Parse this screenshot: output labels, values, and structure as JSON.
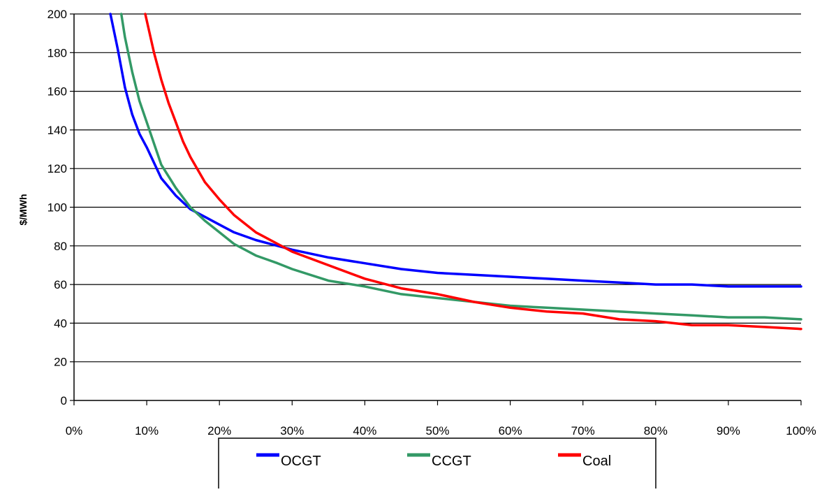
{
  "chart_data": {
    "type": "line",
    "title": "",
    "xlabel": "",
    "ylabel": "$/MWh",
    "x_tick_labels": [
      "0%",
      "10%",
      "20%",
      "30%",
      "40%",
      "50%",
      "60%",
      "70%",
      "80%",
      "90%",
      "100%"
    ],
    "y_tick_labels": [
      "0",
      "20",
      "40",
      "60",
      "80",
      "100",
      "120",
      "140",
      "160",
      "180",
      "200"
    ],
    "xlim": [
      0,
      100
    ],
    "ylim": [
      0,
      200
    ],
    "grid": "horizontal",
    "legend_position": "bottom",
    "series": [
      {
        "name": "OCGT",
        "color": "#0000ff",
        "x": [
          5,
          6,
          7,
          8,
          9,
          10,
          12,
          14,
          16,
          18,
          20,
          22,
          25,
          28,
          30,
          35,
          40,
          45,
          50,
          55,
          60,
          65,
          70,
          75,
          80,
          85,
          90,
          95,
          100
        ],
        "y": [
          200,
          182,
          162,
          148,
          138,
          131,
          115,
          106,
          99,
          95,
          91,
          87,
          83,
          80,
          78,
          74,
          71,
          68,
          66,
          65,
          64,
          63,
          62,
          61,
          60,
          60,
          59,
          59,
          59
        ]
      },
      {
        "name": "CCGT",
        "color": "#339966",
        "x": [
          6.5,
          7,
          8,
          9,
          10,
          11,
          12,
          14,
          16,
          18,
          20,
          22,
          25,
          28,
          30,
          35,
          40,
          45,
          50,
          55,
          60,
          65,
          70,
          75,
          80,
          85,
          90,
          95,
          100
        ],
        "y": [
          200,
          188,
          170,
          155,
          144,
          133,
          122,
          110,
          100,
          93,
          87,
          81,
          75,
          71,
          68,
          62,
          59,
          55,
          53,
          51,
          49,
          48,
          47,
          46,
          45,
          44,
          43,
          43,
          42
        ]
      },
      {
        "name": "Coal",
        "color": "#ff0000",
        "x": [
          9.8,
          11,
          12,
          13,
          14,
          15,
          16,
          18,
          20,
          22,
          25,
          28,
          30,
          35,
          40,
          45,
          50,
          55,
          60,
          65,
          70,
          75,
          80,
          85,
          90,
          95,
          100
        ],
        "y": [
          200,
          180,
          166,
          154,
          144,
          134,
          126,
          113,
          104,
          96,
          87,
          81,
          77,
          70,
          63,
          58,
          55,
          51,
          48,
          46,
          45,
          42,
          41,
          39,
          39,
          38,
          37
        ]
      }
    ]
  }
}
